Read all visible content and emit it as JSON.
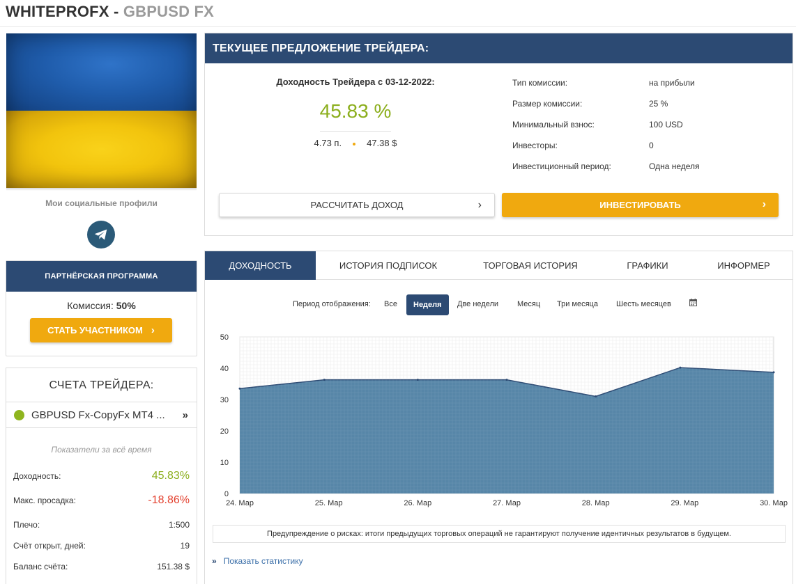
{
  "header": {
    "title_main": "WHITEPROFX",
    "title_sep": " - ",
    "title_sub": "GBPUSD FX"
  },
  "sidebar": {
    "social_label": "Мои социальные профили",
    "partner": {
      "title": "ПАРТНЁРСКАЯ ПРОГРАММА",
      "commission_label": "Комиссия:",
      "commission_value": "50%",
      "join_button": "СТАТЬ УЧАСТНИКОМ"
    },
    "accounts": {
      "title": "СЧЕТА ТРЕЙДЕРА:",
      "account_name": "GBPUSD Fx-CopyFx MT4 ...",
      "subtitle": "Показатели за всё время",
      "stats": [
        {
          "label": "Доходность:",
          "value": "45.83%"
        },
        {
          "label": "Макс. просадка:",
          "value": "-18.86%"
        },
        {
          "label": "Плечо:",
          "value": "1:500"
        },
        {
          "label": "Счёт открыт, дней:",
          "value": "19"
        },
        {
          "label": "Баланс счёта:",
          "value": "151.38 $"
        }
      ]
    }
  },
  "offer": {
    "title": "ТЕКУЩЕЕ ПРЕДЛОЖЕНИЕ ТРЕЙДЕРА:",
    "yield_label": "Доходность Трейдера с 03-12-2022:",
    "yield_value": "45.83 %",
    "points": "4.73 п.",
    "profit": "47.38 $",
    "info": [
      {
        "label": "Тип комиссии:",
        "value": "на прибыли"
      },
      {
        "label": "Размер комиссии:",
        "value": "25 %"
      },
      {
        "label": "Минимальный взнос:",
        "value": "100 USD"
      },
      {
        "label": "Инвесторы:",
        "value": "0"
      },
      {
        "label": "Инвестиционный период:",
        "value": "Одна неделя"
      }
    ],
    "calc_button": "РАССЧИТАТЬ ДОХОД",
    "invest_button": "ИНВЕСТИРОВАТЬ"
  },
  "tabs": [
    "ДОХОДНОСТЬ",
    "ИСТОРИЯ ПОДПИСОК",
    "ТОРГОВАЯ ИСТОРИЯ",
    "ГРАФИКИ",
    "ИНФОРМЕР"
  ],
  "period": {
    "label": "Период отображения:",
    "options": [
      "Все",
      "Неделя",
      "Две недели",
      "Месяц",
      "Три месяца",
      "Шесть месяцев"
    ],
    "selected": "Неделя"
  },
  "chart_data": {
    "type": "area",
    "categories": [
      "24. Мар",
      "25. Мар",
      "26. Мар",
      "27. Мар",
      "28. Мар",
      "29. Мар",
      "30. Мар"
    ],
    "x": [
      0,
      0.95,
      2.0,
      3.0,
      4.0,
      4.95,
      6.0
    ],
    "values": [
      33.5,
      36.3,
      36.3,
      36.3,
      31.0,
      40.2,
      38.7
    ],
    "ylim": [
      0,
      50
    ],
    "yticks": [
      0,
      10,
      20,
      30,
      40,
      50
    ],
    "color": "#4e7fa3",
    "grid": true
  },
  "risk_warning": "Предупреждение о рисках: итоги предыдущих торговых операций не гарантируют получение идентичных результатов в будущем.",
  "stats_link": "Показать статистику"
}
